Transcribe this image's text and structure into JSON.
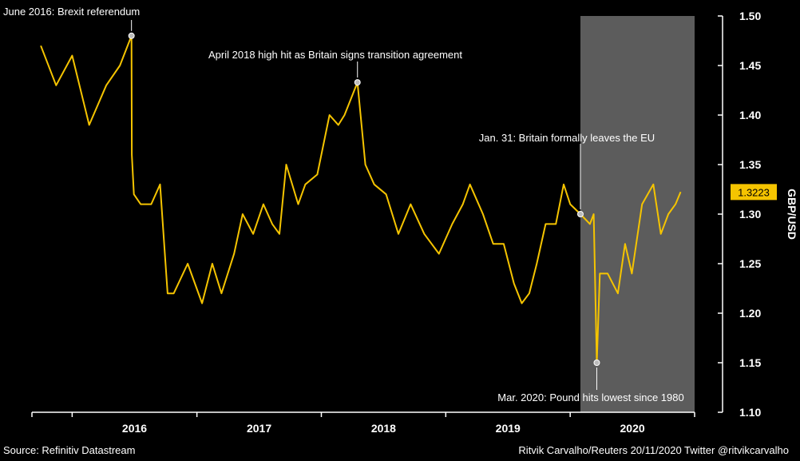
{
  "chart_data": {
    "type": "line",
    "series": [
      {
        "color": "#F5C400",
        "x": [
          "2015-10-01",
          "2015-11-15",
          "2016-01-01",
          "2016-02-20",
          "2016-04-10",
          "2016-05-20",
          "2016-06-23",
          "2016-06-24",
          "2016-06-30",
          "2016-07-20",
          "2016-08-20",
          "2016-09-15",
          "2016-10-07",
          "2016-10-25",
          "2016-12-05",
          "2017-01-16",
          "2017-02-15",
          "2017-03-14",
          "2017-04-20",
          "2017-05-15",
          "2017-06-15",
          "2017-07-15",
          "2017-08-10",
          "2017-08-31",
          "2017-09-20",
          "2017-10-25",
          "2017-11-15",
          "2017-12-20",
          "2018-01-25",
          "2018-02-20",
          "2018-03-10",
          "2018-04-17",
          "2018-05-10",
          "2018-06-05",
          "2018-07-10",
          "2018-08-15",
          "2018-09-20",
          "2018-10-30",
          "2018-12-12",
          "2019-01-20",
          "2019-02-20",
          "2019-03-13",
          "2019-04-20",
          "2019-05-20",
          "2019-06-20",
          "2019-07-20",
          "2019-08-12",
          "2019-09-03",
          "2019-09-25",
          "2019-10-21",
          "2019-11-20",
          "2019-12-13",
          "2020-01-01",
          "2020-01-31",
          "2020-02-28",
          "2020-03-10",
          "2020-03-19",
          "2020-03-28",
          "2020-04-20",
          "2020-05-20",
          "2020-06-10",
          "2020-06-30",
          "2020-07-30",
          "2020-09-01",
          "2020-09-23",
          "2020-10-15",
          "2020-11-05",
          "2020-11-20"
        ],
        "y": [
          1.47,
          1.43,
          1.46,
          1.39,
          1.43,
          1.45,
          1.48,
          1.36,
          1.32,
          1.31,
          1.31,
          1.33,
          1.22,
          1.22,
          1.25,
          1.21,
          1.25,
          1.22,
          1.26,
          1.3,
          1.28,
          1.31,
          1.29,
          1.28,
          1.35,
          1.31,
          1.33,
          1.34,
          1.4,
          1.39,
          1.4,
          1.433,
          1.35,
          1.33,
          1.32,
          1.28,
          1.31,
          1.28,
          1.26,
          1.29,
          1.31,
          1.33,
          1.3,
          1.27,
          1.27,
          1.23,
          1.21,
          1.22,
          1.25,
          1.29,
          1.29,
          1.33,
          1.31,
          1.3,
          1.29,
          1.3,
          1.15,
          1.24,
          1.24,
          1.22,
          1.27,
          1.24,
          1.31,
          1.33,
          1.28,
          1.3,
          1.31,
          1.3223
        ]
      }
    ],
    "y_axis": {
      "label": "GBP/USD",
      "ylim": [
        1.1,
        1.5
      ],
      "position": "right",
      "ticks": [
        "1.10",
        "1.15",
        "1.20",
        "1.25",
        "1.30",
        "1.35",
        "1.40",
        "1.45",
        "1.50"
      ],
      "tick_values": [
        1.1,
        1.15,
        1.2,
        1.25,
        1.3,
        1.35,
        1.4,
        1.45,
        1.5
      ]
    },
    "x_axis": {
      "range": [
        "2015-09-05",
        "2020-12-31"
      ],
      "year_labels": [
        "2016",
        "2017",
        "2018",
        "2019",
        "2020"
      ],
      "year_starts": [
        "2016-01-01",
        "2017-01-01",
        "2018-01-01",
        "2019-01-01",
        "2020-01-01",
        "2021-01-01"
      ]
    },
    "last_value_label": "1.3223",
    "shaded_period": [
      "2020-01-31",
      "2020-12-31"
    ],
    "grid": false,
    "annotations": [
      {
        "text": "June 2016: Brexit referendum",
        "x": "2016-06-23",
        "y": 1.48,
        "placement": "above-left"
      },
      {
        "text": "April 2018 high hit as Britain signs transition agreement",
        "x": "2018-04-17",
        "y": 1.433,
        "placement": "above"
      },
      {
        "text": "Jan. 31: Britain formally leaves the EU",
        "x": "2020-01-31",
        "y": 1.3,
        "placement": "above"
      },
      {
        "text": "Mar. 2020: Pound hits lowest since 1980",
        "x": "2020-03-19",
        "y": 1.15,
        "placement": "below"
      }
    ]
  },
  "footer": {
    "source": "Source: Refinitiv Datastream",
    "credit": "Ritvik Carvalho/Reuters 20/11/2020 Twitter @ritvikcarvalho"
  }
}
